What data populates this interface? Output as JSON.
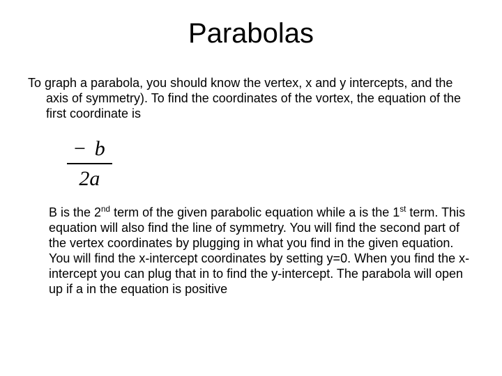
{
  "title": "Parabolas",
  "para1": "To graph a parabola, you should know the vertex, x and y intercepts, and the axis of symmetry). To find the coordinates of the vortex, the equation of the first coordinate is",
  "formula": {
    "numerator_html": "&minus;&nbsp;<i>b</i>",
    "denominator_html": "2<i>a</i>"
  },
  "para2_parts": {
    "p0": "B is the 2",
    "sup0": "nd",
    "p1": " term of the given parabolic equation while a is the 1",
    "sup1": "st",
    "p2": " term. This equation will also find the line of symmetry. You will find the second part of the vertex coordinates by plugging in what you find  in the given equation. You will find the x-intercept coordinates by setting y=0. When you find the x-intercept you can plug that in to find the y-intercept. The parabola will open up if a in the equation is positive"
  },
  "colors": {
    "background": "#ffffff",
    "text": "#000000"
  },
  "fontsizes": {
    "title": 40,
    "body": 18,
    "formula": 30
  }
}
